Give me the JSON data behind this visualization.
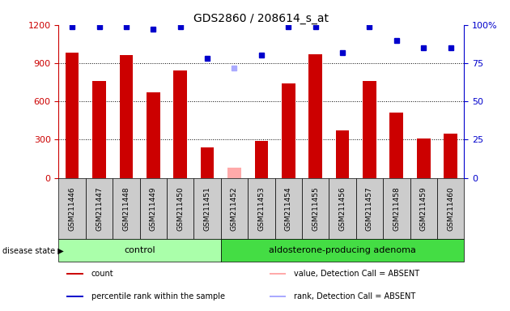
{
  "title": "GDS2860 / 208614_s_at",
  "samples": [
    "GSM211446",
    "GSM211447",
    "GSM211448",
    "GSM211449",
    "GSM211450",
    "GSM211451",
    "GSM211452",
    "GSM211453",
    "GSM211454",
    "GSM211455",
    "GSM211456",
    "GSM211457",
    "GSM211458",
    "GSM211459",
    "GSM211460"
  ],
  "bar_values": [
    980,
    760,
    960,
    670,
    840,
    240,
    null,
    290,
    740,
    970,
    370,
    760,
    510,
    310,
    350
  ],
  "bar_absent": [
    null,
    null,
    null,
    null,
    null,
    null,
    80,
    null,
    null,
    null,
    null,
    null,
    null,
    null,
    null
  ],
  "bar_color": "#cc0000",
  "bar_absent_color": "#ffaaaa",
  "dot_values": [
    99,
    99,
    99,
    97,
    99,
    78,
    72,
    80,
    99,
    99,
    82,
    99,
    90,
    85,
    85
  ],
  "dot_absent": [
    null,
    null,
    null,
    null,
    null,
    null,
    72,
    null,
    null,
    null,
    null,
    null,
    null,
    null,
    null
  ],
  "dot_color": "#0000cc",
  "dot_absent_color": "#aaaaff",
  "ylim_left": [
    0,
    1200
  ],
  "ylim_right": [
    0,
    100
  ],
  "yticks_left": [
    0,
    300,
    600,
    900,
    1200
  ],
  "yticks_right": [
    0,
    25,
    50,
    75,
    100
  ],
  "ytick_right_labels": [
    "0",
    "25",
    "50",
    "75",
    "100%"
  ],
  "control_count": 6,
  "disease_label_control": "control",
  "disease_label_adenoma": "aldosterone-producing adenoma",
  "disease_state_label": "disease state",
  "group_bg_control": "#aaffaa",
  "group_bg_adenoma": "#44dd44",
  "sample_bg": "#cccccc",
  "plot_bg": "#ffffff",
  "legend_items": [
    {
      "color": "#cc0000",
      "label": "count"
    },
    {
      "color": "#0000cc",
      "label": "percentile rank within the sample"
    },
    {
      "color": "#ffaaaa",
      "label": "value, Detection Call = ABSENT"
    },
    {
      "color": "#aaaaff",
      "label": "rank, Detection Call = ABSENT"
    }
  ]
}
